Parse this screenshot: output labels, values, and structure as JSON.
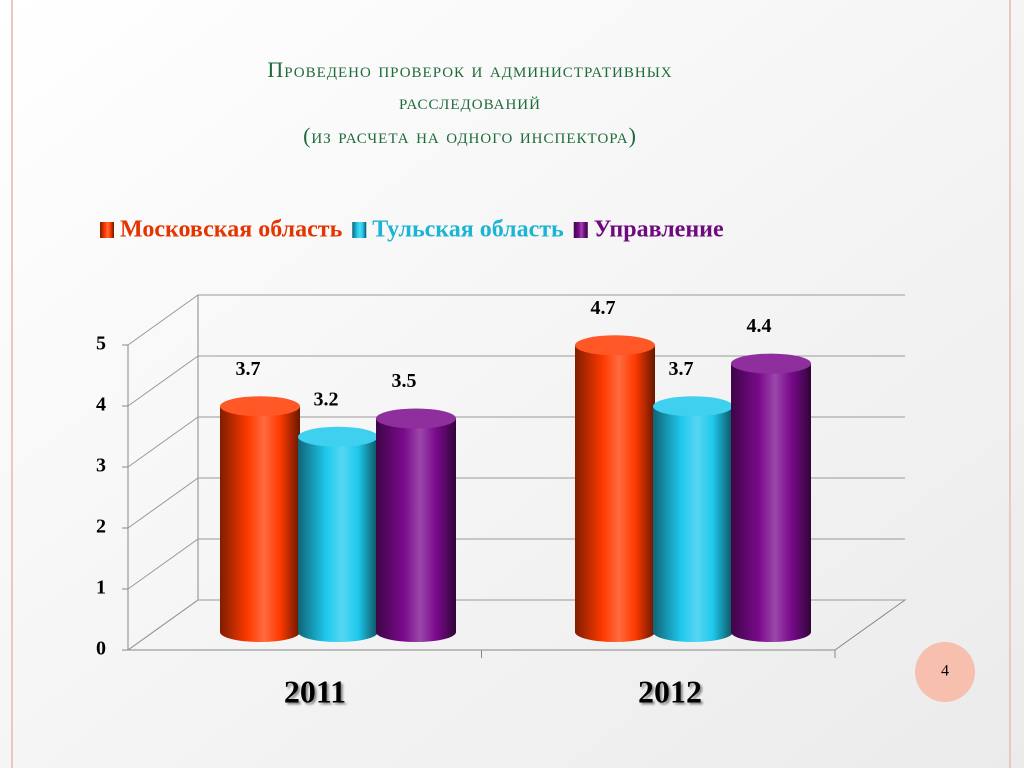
{
  "chart_data": {
    "type": "bar3d",
    "title": [
      "Проведено проверок и административных",
      "расследований",
      "(из расчета на одного инспектора)"
    ],
    "categories": [
      "2011",
      "2012"
    ],
    "series": [
      {
        "name": "Московская область",
        "color": "#ff3a00",
        "values": [
          3.7,
          4.7
        ]
      },
      {
        "name": "Тульская область",
        "color": "#1ec8ec",
        "values": [
          3.2,
          3.7
        ]
      },
      {
        "name": "Управление",
        "color": "#7a0a8c",
        "values": [
          3.5,
          4.4
        ]
      }
    ],
    "ylim": [
      0,
      5
    ],
    "yticks": [
      0,
      1,
      2,
      3,
      4,
      5
    ],
    "grid": true,
    "legend": "top"
  },
  "page_number": "4"
}
